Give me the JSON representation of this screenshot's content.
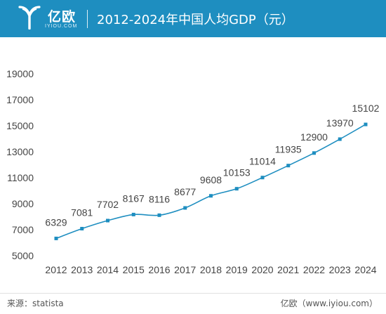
{
  "header": {
    "brand": "亿欧",
    "brand_sub": "IYIOU.COM",
    "title": "2012-2024年中国人均GDP（元）"
  },
  "footer": {
    "source": "来源：statista",
    "credit": "亿欧（www.iyiou.com）"
  },
  "colors": {
    "header_bg": "#1e8ec0",
    "line": "#1e8ec0",
    "marker": "#1e8ec0"
  },
  "chart_data": {
    "type": "line",
    "title": "2012-2024年中国人均GDP（元）",
    "xlabel": "",
    "ylabel": "",
    "categories": [
      "2012",
      "2013",
      "2014",
      "2015",
      "2016",
      "2017",
      "2018",
      "2019",
      "2020",
      "2021",
      "2022",
      "2023",
      "2024"
    ],
    "values": [
      6329,
      7081,
      7702,
      8167,
      8116,
      8677,
      9608,
      10153,
      11014,
      11935,
      12900,
      13970,
      15102
    ],
    "ylim": [
      5000,
      19000
    ],
    "yticks": [
      5000,
      7000,
      9000,
      11000,
      13000,
      15000,
      17000,
      19000
    ],
    "grid": false,
    "legend": "none",
    "data_labels": true
  }
}
